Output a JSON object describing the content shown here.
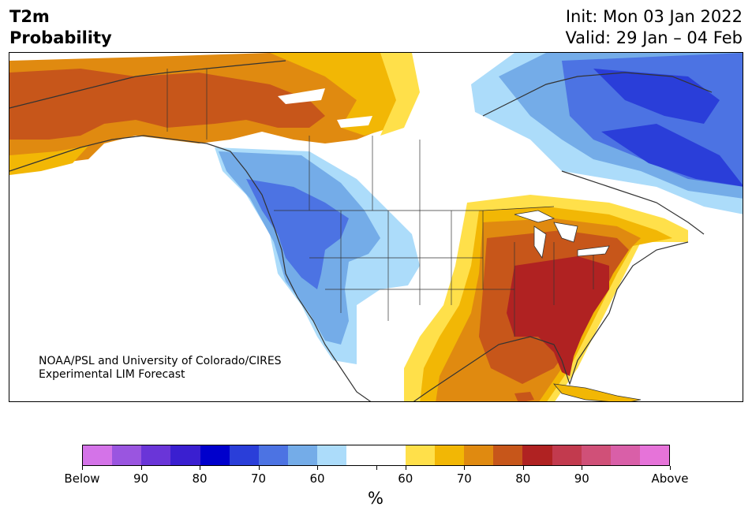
{
  "header": {
    "variable": "T2m",
    "product": "Probability",
    "init": "Init: Mon 03 Jan 2022",
    "valid": "Valid: 29 Jan – 04 Feb"
  },
  "credit": {
    "line1": "NOAA/PSL and University of Colorado/CIRES",
    "line2": "Experimental LIM Forecast"
  },
  "colors": {
    "below": [
      "#d473e8",
      "#9a55e0",
      "#6a35d8",
      "#3a1fd0",
      "#0000cc",
      "#2a3ed9",
      "#4c73e3",
      "#74ace8",
      "#acdcfa"
    ],
    "neutral": "#ffffff",
    "above": [
      "#ffe04a",
      "#f2b705",
      "#e08a10",
      "#c7561a",
      "#b02222",
      "#c23a4e",
      "#d05078",
      "#d95fa8",
      "#e673d9"
    ],
    "land": "#ffffff",
    "coast": "#333333"
  },
  "colorbar": {
    "labels": [
      "Below",
      "90",
      "80",
      "70",
      "60",
      "60",
      "70",
      "80",
      "90",
      "Above"
    ],
    "unit": "%"
  }
}
